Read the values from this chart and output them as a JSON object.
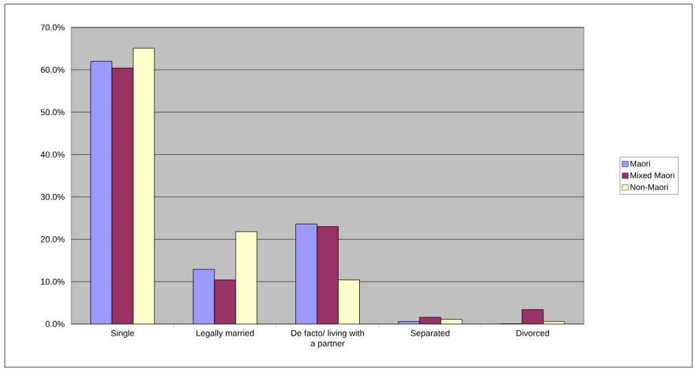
{
  "chart_data": {
    "type": "bar",
    "categories": [
      "Single",
      "Legally married",
      "De facto/ living with a partner",
      "Separated",
      "Divorced"
    ],
    "series": [
      {
        "name": "Maori",
        "color": "#9999ff",
        "values": [
          62.0,
          12.9,
          23.6,
          0.6,
          0.0
        ]
      },
      {
        "name": "Mixed Maori",
        "color": "#993366",
        "values": [
          60.4,
          10.4,
          23.0,
          1.6,
          3.4
        ]
      },
      {
        "name": "Non-Maori",
        "color": "#ffffcc",
        "values": [
          65.1,
          21.8,
          10.4,
          1.1,
          0.6
        ]
      }
    ],
    "ylim": [
      0,
      70
    ],
    "yticks": [
      {
        "value": 0,
        "label": "0.0%"
      },
      {
        "value": 10,
        "label": "10.0%"
      },
      {
        "value": 20,
        "label": "20.0%"
      },
      {
        "value": 30,
        "label": "30.0%"
      },
      {
        "value": 40,
        "label": "40.0%"
      },
      {
        "value": 50,
        "label": "50.0%"
      },
      {
        "value": 60,
        "label": "60.0%"
      },
      {
        "value": 70,
        "label": "70.0%"
      }
    ],
    "grid": "y",
    "legend": "right"
  }
}
